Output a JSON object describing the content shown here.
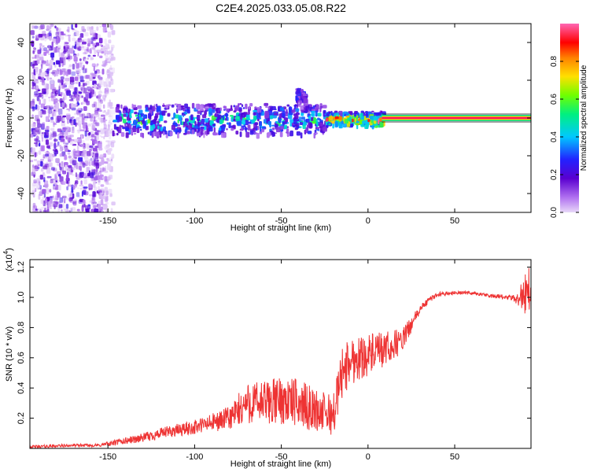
{
  "title": "C2E4.2025.033.05.08.R22",
  "colors": {
    "snr_line": "#ee3333",
    "spectrogram_palette": [
      "#ffffff",
      "#e8d8f8",
      "#c9a6f0",
      "#8a3ce0",
      "#5a00d0",
      "#2222ff",
      "#00c8ff",
      "#00f080",
      "#6fff00",
      "#ffe000",
      "#ff8000",
      "#ff0000",
      "#ff2080",
      "#ff66b3"
    ]
  },
  "chart_data": [
    {
      "type": "heatmap",
      "name": "spectrogram",
      "xlabel": "Height of straight line (km)",
      "ylabel": "Frequency (Hz)",
      "xlim": [
        -195,
        94
      ],
      "ylim": [
        -50,
        50
      ],
      "xticks": [
        -150,
        -100,
        -50,
        0,
        50
      ],
      "yticks": [
        -40,
        -20,
        0,
        20,
        40
      ],
      "grid": false,
      "colorbar": {
        "label": "Normalized spectral amplitude",
        "range": [
          0,
          1
        ],
        "ticks": [
          0.0,
          0.2,
          0.4,
          0.6,
          0.8
        ],
        "tick_labels": [
          "0.0",
          "0.2",
          "0.4",
          "0.6",
          "0.8"
        ]
      },
      "regions": [
        {
          "x": [
            -195,
            -148
          ],
          "freq_hz": [
            -50,
            50
          ],
          "amplitude": [
            0.0,
            0.25
          ],
          "description": "broadband noise"
        },
        {
          "x": [
            -148,
            -25
          ],
          "freq_hz": [
            -8,
            8
          ],
          "amplitude": [
            0.15,
            0.55
          ],
          "description": "signal band"
        },
        {
          "x": [
            -42,
            -37
          ],
          "freq_hz": [
            9,
            16
          ],
          "amplitude": [
            0.1,
            0.3
          ],
          "description": "secondary blob"
        },
        {
          "x": [
            -25,
            8
          ],
          "freq_hz": [
            -3,
            4
          ],
          "amplitude": [
            0.4,
            0.9
          ],
          "description": "narrowing carrier"
        },
        {
          "x": [
            8,
            94
          ],
          "freq_hz": [
            -1,
            1
          ],
          "amplitude": [
            0.9,
            1.0
          ],
          "description": "steady carrier"
        }
      ]
    },
    {
      "type": "line",
      "name": "snr",
      "xlabel": "Height of straight line (km)",
      "ylabel": "SNR (10 * v/v)",
      "y_multiplier_label": "(x10",
      "y_multiplier_exp": "4",
      "y_multiplier_close": ")",
      "xlim": [
        -195,
        94
      ],
      "ylim": [
        0,
        1.25
      ],
      "xticks": [
        -150,
        -100,
        -50,
        0,
        50
      ],
      "yticks": [
        0.2,
        0.4,
        0.6,
        0.8,
        1.0,
        1.2
      ],
      "ytick_labels": [
        "0.2",
        "0.4",
        "0.6",
        "0.8",
        "1.0",
        "1.2"
      ],
      "grid": false,
      "series": [
        {
          "x": [
            -195,
            -170,
            -155,
            -145,
            -130,
            -115,
            -100,
            -90,
            -80,
            -75,
            -70,
            -60,
            -50,
            -40,
            -30,
            -20,
            -15,
            -10,
            0,
            10,
            20,
            25,
            30,
            35,
            40,
            50,
            60,
            70,
            80,
            85,
            90,
            93
          ],
          "y": [
            0.01,
            0.02,
            0.02,
            0.04,
            0.07,
            0.11,
            0.14,
            0.17,
            0.2,
            0.24,
            0.3,
            0.3,
            0.32,
            0.3,
            0.25,
            0.22,
            0.5,
            0.58,
            0.62,
            0.65,
            0.72,
            0.82,
            0.92,
            0.98,
            1.02,
            1.03,
            1.03,
            1.01,
            1.0,
            0.99,
            1.02,
            1.05
          ],
          "noise_amplitude": [
            0.01,
            0.01,
            0.01,
            0.02,
            0.03,
            0.04,
            0.05,
            0.06,
            0.08,
            0.12,
            0.14,
            0.15,
            0.16,
            0.16,
            0.14,
            0.14,
            0.18,
            0.16,
            0.14,
            0.12,
            0.08,
            0.05,
            0.03,
            0.02,
            0.015,
            0.012,
            0.012,
            0.012,
            0.015,
            0.03,
            0.12,
            0.2
          ]
        }
      ]
    }
  ]
}
